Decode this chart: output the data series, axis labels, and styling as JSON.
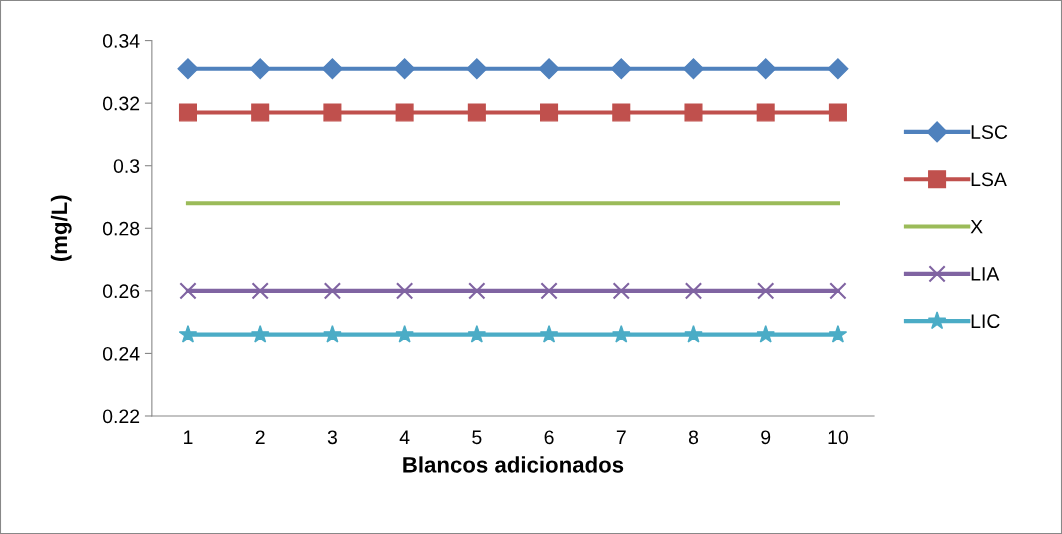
{
  "chart_data": {
    "type": "line",
    "xlabel": "Blancos adicionados",
    "ylabel": "(mg/L)",
    "categories": [
      "1",
      "2",
      "3",
      "4",
      "5",
      "6",
      "7",
      "8",
      "9",
      "10"
    ],
    "series": [
      {
        "name": "LSC",
        "color": "#4f81bd",
        "marker": "diamond",
        "values": [
          0.331,
          0.331,
          0.331,
          0.331,
          0.331,
          0.331,
          0.331,
          0.331,
          0.331,
          0.331
        ]
      },
      {
        "name": "LSA",
        "color": "#c0504d",
        "marker": "square",
        "values": [
          0.317,
          0.317,
          0.317,
          0.317,
          0.317,
          0.317,
          0.317,
          0.317,
          0.317,
          0.317
        ]
      },
      {
        "name": "X",
        "color": "#9bbb59",
        "marker": "none",
        "values": [
          0.288,
          0.288,
          0.288,
          0.288,
          0.288,
          0.288,
          0.288,
          0.288,
          0.288,
          0.288
        ]
      },
      {
        "name": "LIA",
        "color": "#8064a2",
        "marker": "cross",
        "values": [
          0.26,
          0.26,
          0.26,
          0.26,
          0.26,
          0.26,
          0.26,
          0.26,
          0.26,
          0.26
        ]
      },
      {
        "name": "LIC",
        "color": "#4bacc6",
        "marker": "star",
        "values": [
          0.246,
          0.246,
          0.246,
          0.246,
          0.246,
          0.246,
          0.246,
          0.246,
          0.246,
          0.246
        ]
      }
    ],
    "ylim": [
      0.22,
      0.34
    ],
    "yticks": [
      0.22,
      0.24,
      0.26,
      0.28,
      0.3,
      0.32,
      0.34
    ],
    "grid": false,
    "legend": "right",
    "line_style": "solid"
  }
}
